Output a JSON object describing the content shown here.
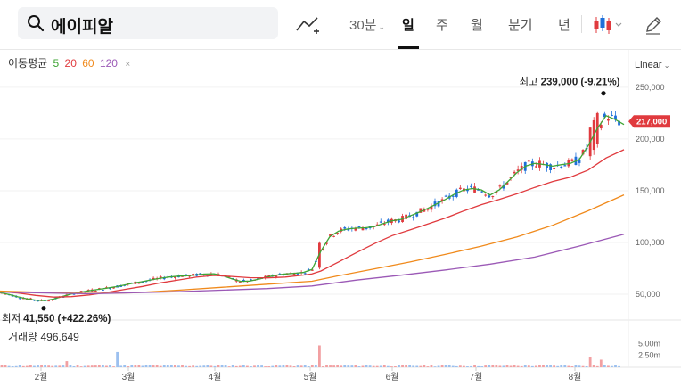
{
  "search": {
    "query": "에이피알"
  },
  "toolbar": {
    "interval_label": "30분",
    "periods": [
      "일",
      "주",
      "월",
      "분기",
      "년"
    ],
    "active_period": "일",
    "chart_style_color_up": "#e03a3e",
    "chart_style_color_down": "#1e6fd9"
  },
  "moving_average": {
    "label": "이동평균",
    "periods": [
      {
        "value": "5",
        "color": "#3fa535"
      },
      {
        "value": "20",
        "color": "#e03a3e"
      },
      {
        "value": "60",
        "color": "#f08a1c"
      },
      {
        "value": "120",
        "color": "#9b59b6"
      }
    ],
    "close_glyph": "×"
  },
  "scale": {
    "label": "Linear"
  },
  "volume": {
    "label": "거래량",
    "value": "496,649"
  },
  "price_badge": {
    "value": "217,000",
    "color": "#e03a3e"
  },
  "annotations": {
    "high": {
      "label": "최고",
      "value": "239,000 (-9.21%)"
    },
    "low": {
      "label": "최저",
      "value": "41,550 (+422.26%)"
    }
  },
  "chart_data": {
    "type": "candlestick",
    "title": "",
    "xlabel": "",
    "ylabel": "",
    "price_axis_ticks": [
      {
        "value": 250000,
        "label": "250,000"
      },
      {
        "value": 200000,
        "label": "200,000"
      },
      {
        "value": 150000,
        "label": "150,000"
      },
      {
        "value": 100000,
        "label": "100,000"
      },
      {
        "value": 50000,
        "label": "50,000"
      }
    ],
    "volume_axis_ticks": [
      {
        "value": 5000000,
        "label": "5.00m"
      },
      {
        "value": 2500000,
        "label": "2.50m"
      }
    ],
    "months": [
      "2월",
      "3월",
      "4월",
      "5월",
      "6월",
      "7월",
      "8월"
    ],
    "ylim": [
      31000,
      262000
    ],
    "volume_ylim": [
      0,
      6000000
    ],
    "high": 239000,
    "low": 41550,
    "last": 217000,
    "series": [
      {
        "name": "5",
        "color": "#3fa535",
        "points": [
          [
            0,
            51500
          ],
          [
            10,
            49800
          ],
          [
            20,
            47500
          ],
          [
            30,
            45600
          ],
          [
            40,
            44200
          ],
          [
            50,
            43800
          ],
          [
            60,
            45200
          ],
          [
            70,
            47800
          ],
          [
            80,
            50200
          ],
          [
            90,
            51900
          ],
          [
            100,
            53300
          ],
          [
            110,
            54600
          ],
          [
            120,
            55800
          ],
          [
            130,
            57200
          ],
          [
            140,
            58900
          ],
          [
            150,
            60700
          ],
          [
            160,
            62100
          ],
          [
            170,
            63800
          ],
          [
            180,
            65400
          ],
          [
            190,
            66600
          ],
          [
            200,
            67400
          ],
          [
            210,
            67800
          ],
          [
            220,
            68600
          ],
          [
            230,
            69400
          ],
          [
            240,
            69700
          ],
          [
            250,
            67800
          ],
          [
            260,
            64800
          ],
          [
            270,
            62400
          ],
          [
            280,
            62600
          ],
          [
            290,
            64400
          ],
          [
            300,
            66600
          ],
          [
            310,
            68300
          ],
          [
            320,
            69500
          ],
          [
            330,
            70100
          ],
          [
            340,
            70900
          ],
          [
            350,
            73800
          ],
          [
            360,
            91700
          ],
          [
            370,
            105600
          ],
          [
            380,
            111000
          ],
          [
            390,
            113000
          ],
          [
            400,
            113800
          ],
          [
            410,
            114200
          ],
          [
            420,
            115300
          ],
          [
            430,
            118300
          ],
          [
            440,
            121000
          ],
          [
            450,
            122300
          ],
          [
            460,
            125600
          ],
          [
            470,
            129200
          ],
          [
            480,
            133000
          ],
          [
            490,
            137300
          ],
          [
            500,
            141700
          ],
          [
            510,
            146800
          ],
          [
            520,
            150600
          ],
          [
            530,
            152100
          ],
          [
            540,
            150800
          ],
          [
            550,
            145900
          ],
          [
            560,
            150700
          ],
          [
            570,
            159000
          ],
          [
            580,
            167600
          ],
          [
            590,
            173900
          ],
          [
            600,
            176400
          ],
          [
            610,
            175400
          ],
          [
            620,
            173700
          ],
          [
            630,
            175200
          ],
          [
            640,
            176400
          ],
          [
            650,
            180200
          ],
          [
            660,
            193700
          ],
          [
            670,
            210000
          ],
          [
            680,
            222500
          ],
          [
            690,
            219000
          ],
          [
            700,
            214000
          ]
        ]
      },
      {
        "name": "20",
        "color": "#e03a3e",
        "points": [
          [
            0,
            52500
          ],
          [
            20,
            51200
          ],
          [
            40,
            48800
          ],
          [
            60,
            47200
          ],
          [
            80,
            47600
          ],
          [
            100,
            49300
          ],
          [
            120,
            51700
          ],
          [
            140,
            54600
          ],
          [
            160,
            57500
          ],
          [
            180,
            60900
          ],
          [
            200,
            63700
          ],
          [
            220,
            66400
          ],
          [
            240,
            68100
          ],
          [
            260,
            67100
          ],
          [
            280,
            65900
          ],
          [
            300,
            65700
          ],
          [
            320,
            66500
          ],
          [
            340,
            68400
          ],
          [
            350,
            69500
          ],
          [
            360,
            72400
          ],
          [
            380,
            81200
          ],
          [
            400,
            90200
          ],
          [
            420,
            98800
          ],
          [
            440,
            106600
          ],
          [
            460,
            112100
          ],
          [
            480,
            117800
          ],
          [
            500,
            123700
          ],
          [
            520,
            130400
          ],
          [
            540,
            136500
          ],
          [
            560,
            141500
          ],
          [
            580,
            147000
          ],
          [
            600,
            153200
          ],
          [
            620,
            158900
          ],
          [
            640,
            163100
          ],
          [
            660,
            170000
          ],
          [
            680,
            181700
          ],
          [
            700,
            189700
          ]
        ]
      },
      {
        "name": "60",
        "color": "#f08a1c",
        "points": [
          [
            0,
            53000
          ],
          [
            50,
            51700
          ],
          [
            100,
            50700
          ],
          [
            150,
            51300
          ],
          [
            200,
            53800
          ],
          [
            250,
            56700
          ],
          [
            300,
            59600
          ],
          [
            350,
            62500
          ],
          [
            380,
            67800
          ],
          [
            420,
            74400
          ],
          [
            460,
            81100
          ],
          [
            500,
            88500
          ],
          [
            540,
            96400
          ],
          [
            580,
            105400
          ],
          [
            620,
            116600
          ],
          [
            660,
            130600
          ],
          [
            700,
            146000
          ]
        ]
      },
      {
        "name": "120",
        "color": "#9b59b6",
        "points": [
          [
            0,
            52000
          ],
          [
            100,
            50400
          ],
          [
            200,
            52400
          ],
          [
            300,
            55400
          ],
          [
            350,
            57900
          ],
          [
            400,
            63600
          ],
          [
            450,
            68300
          ],
          [
            500,
            73400
          ],
          [
            550,
            79000
          ],
          [
            600,
            85800
          ],
          [
            650,
            96500
          ],
          [
            700,
            108000
          ]
        ]
      }
    ]
  }
}
